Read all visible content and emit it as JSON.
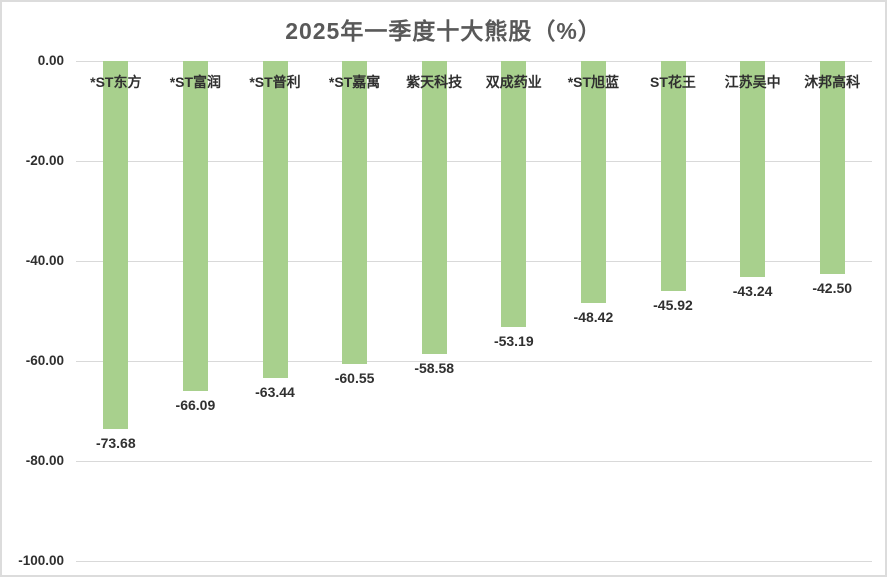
{
  "chart_data": {
    "type": "bar",
    "title": "2025年一季度十大熊股（%）",
    "categories": [
      "*ST东方",
      "*ST富润",
      "*ST普利",
      "*ST嘉寓",
      "紫天科技",
      "双成药业",
      "*ST旭蓝",
      "ST花王",
      "江苏吴中",
      "沐邦高科"
    ],
    "values": [
      -73.68,
      -66.09,
      -63.44,
      -60.55,
      -58.58,
      -53.19,
      -48.42,
      -45.92,
      -43.24,
      -42.5
    ],
    "data_labels": [
      "-73.68",
      "-66.09",
      "-63.44",
      "-60.55",
      "-58.58",
      "-53.19",
      "-48.42",
      "-45.92",
      "-43.24",
      "-42.50"
    ],
    "xlabel": "",
    "ylabel": "",
    "ylim": [
      -100,
      0
    ],
    "yticks": [
      0,
      -20,
      -40,
      -60,
      -80,
      -100
    ],
    "ytick_labels": [
      "0.00",
      "-20.00",
      "-40.00",
      "-60.00",
      "-80.00",
      "-100.00"
    ],
    "grid": true,
    "legend": false,
    "data_labels_shown": true,
    "colors": {
      "bar_fill": "#A8D08D",
      "gridline": "#D9D9D9",
      "axis_label": "#303030",
      "category_label": "#303030",
      "data_label": "#303030",
      "title": "#595959",
      "frame_border": "#DCDCDC",
      "background": "#FFFFFF"
    }
  }
}
